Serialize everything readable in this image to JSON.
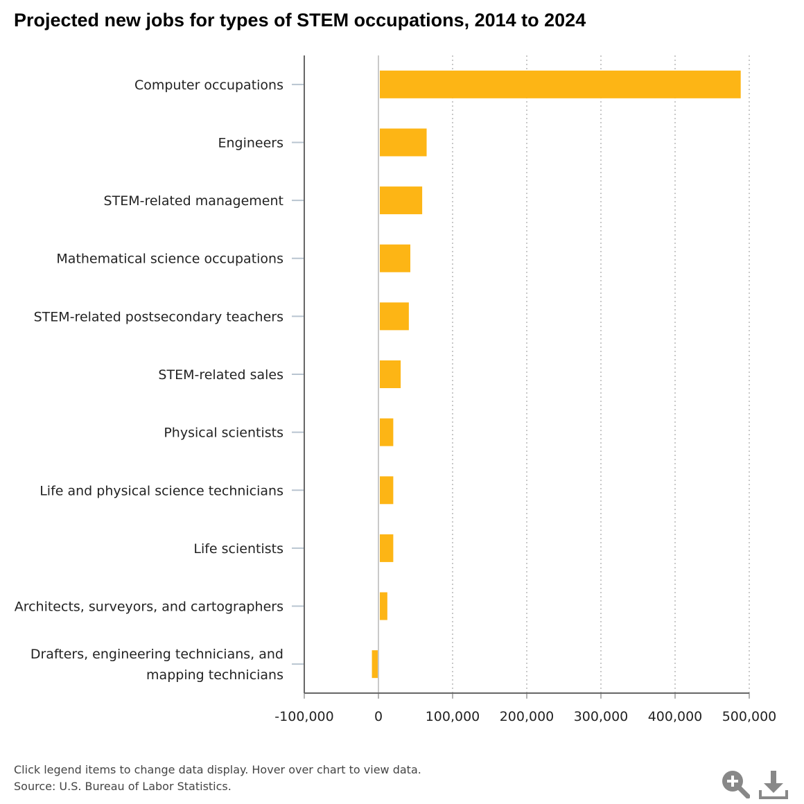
{
  "chart_data": {
    "type": "bar",
    "orientation": "horizontal",
    "title": "Projected new jobs for types of STEM occupations, 2014 to 2024",
    "categories": [
      [
        "Computer occupations"
      ],
      [
        "Engineers"
      ],
      [
        "STEM-related management"
      ],
      [
        "Mathematical science occupations"
      ],
      [
        "STEM-related postsecondary teachers"
      ],
      [
        "STEM-related sales"
      ],
      [
        "Physical scientists"
      ],
      [
        "Life and physical science technicians"
      ],
      [
        "Life scientists"
      ],
      [
        "Architects, surveyors, and cartographers"
      ],
      [
        "Drafters, engineering technicians, and",
        "mapping technicians"
      ]
    ],
    "values": [
      488500,
      65000,
      59000,
      43000,
      41000,
      30000,
      20000,
      20000,
      20000,
      12000,
      -8800
    ],
    "xlim": [
      -100000,
      500000
    ],
    "xticks": [
      -100000,
      0,
      100000,
      200000,
      300000,
      400000,
      500000
    ],
    "xtick_labels": [
      "-100,000",
      "0",
      "100,000",
      "200,000",
      "300,000",
      "400,000",
      "500,000"
    ],
    "bar_color": "#fdb515",
    "grid": "vertical dotted",
    "xlabel": "",
    "ylabel": ""
  },
  "footer": {
    "line1": "Click legend items to change data display. Hover over chart to view data.",
    "line2": "Source: U.S. Bureau of Labor Statistics."
  },
  "icons": {
    "zoom": "zoom-in-icon",
    "download": "download-icon"
  }
}
